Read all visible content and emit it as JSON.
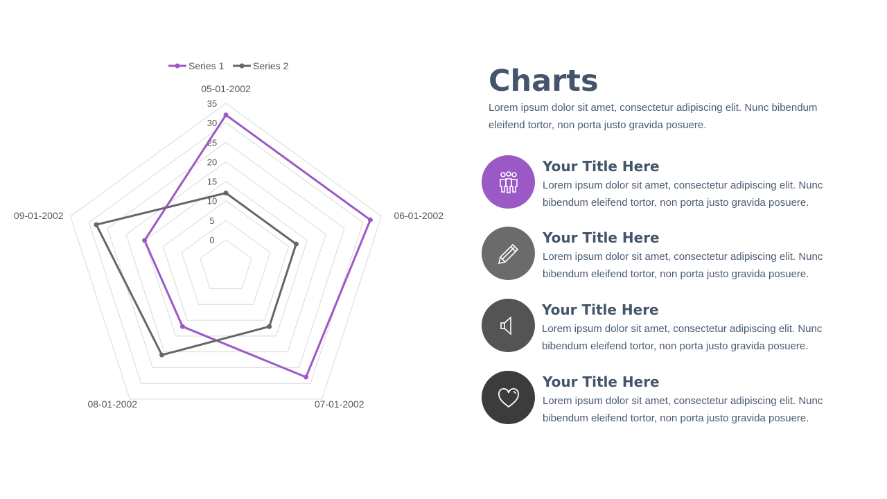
{
  "slide": {
    "title": "Charts",
    "intro": "Lorem ipsum dolor sit amet, consectetur adipiscing elit. Nunc bibendum eleifend tortor, non porta justo gravida posuere."
  },
  "items": [
    {
      "title": "Your Title Here",
      "text": "Lorem ipsum dolor sit amet, consectetur adipiscing elit. Nunc bibendum eleifend tortor, non porta justo gravida posuere.",
      "icon": "people-icon",
      "color": "#9b59c6"
    },
    {
      "title": "Your Title Here",
      "text": "Lorem ipsum dolor sit amet, consectetur adipiscing elit. Nunc bibendum eleifend tortor, non porta justo gravida posuere.",
      "icon": "pencil-icon",
      "color": "#6b6b6b"
    },
    {
      "title": "Your Title Here",
      "text": "Lorem ipsum dolor sit amet, consectetur adipiscing elit. Nunc bibendum eleifend tortor, non porta justo gravida posuere.",
      "icon": "speaker-icon",
      "color": "#545454"
    },
    {
      "title": "Your Title Here",
      "text": "Lorem ipsum dolor sit amet, consectetur adipiscing elit. Nunc bibendum eleifend tortor, non porta justo gravida posuere.",
      "icon": "heart-icon",
      "color": "#3c3c3c"
    }
  ],
  "chart_data": {
    "type": "radar",
    "categories": [
      "05-01-2002",
      "06-01-2002",
      "07-01-2002",
      "08-01-2002",
      "09-01-2002"
    ],
    "series": [
      {
        "name": "Series 1",
        "values": [
          32,
          32,
          28,
          12,
          15
        ],
        "color": "#9b59c6"
      },
      {
        "name": "Series 2",
        "values": [
          12,
          12,
          12,
          21,
          28
        ],
        "color": "#666666"
      }
    ],
    "rlim": [
      0,
      35
    ],
    "ticks": [
      0,
      5,
      10,
      15,
      20,
      25,
      30,
      35
    ],
    "grid": true,
    "legend": "top"
  }
}
